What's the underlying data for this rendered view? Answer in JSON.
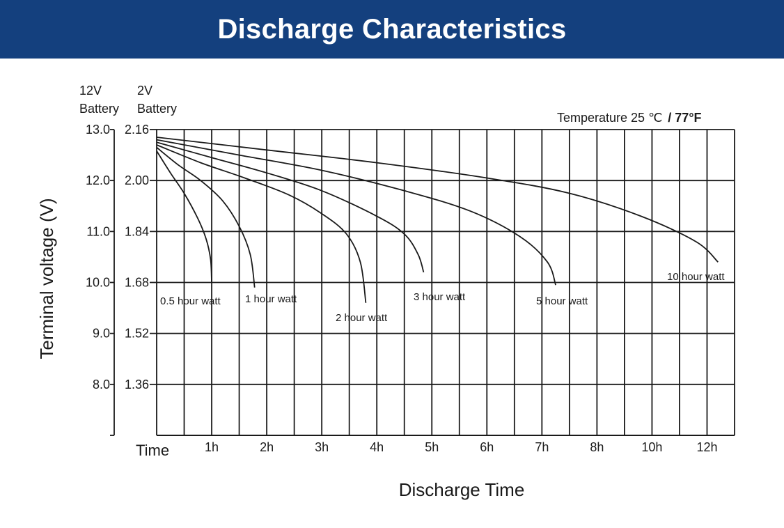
{
  "colors": {
    "banner": "#14407e",
    "banner_text": "#ffffff",
    "ink": "#1a1a1a"
  },
  "banner": {
    "title": "Discharge Characteristics"
  },
  "chart_data": {
    "type": "line",
    "title": "Discharge Characteristics",
    "temperature_note": "Temperature 25 ℃",
    "temperature_note_bold": "/ 77°F",
    "xlabel": "Discharge Time",
    "ylabel": "Terminal voltage (V)",
    "y_header_12v": [
      "12V",
      "Battery"
    ],
    "y_header_2v": [
      "2V",
      "Battery"
    ],
    "x_origin_label": "Time",
    "x_ticks": [
      "1h",
      "2h",
      "3h",
      "4h",
      "5h",
      "6h",
      "7h",
      "8h",
      "10h",
      "12h"
    ],
    "y_ticks_12v": [
      "13.0",
      "12.0",
      "11.0",
      "10.0",
      "9.0",
      "8.0"
    ],
    "y_ticks_2v": [
      "2.16",
      "2.00",
      "1.84",
      "1.68",
      "1.52",
      "1.36"
    ],
    "y_tick_values": [
      13.0,
      12.0,
      11.0,
      10.0,
      9.0,
      8.0
    ],
    "ylim": [
      7.0,
      13.0
    ],
    "grid": true,
    "series": [
      {
        "name": "0.5 hour watt",
        "x": [
          0,
          0.25,
          0.5,
          0.75,
          0.9,
          0.98,
          1.0
        ],
        "y": [
          12.58,
          12.15,
          11.75,
          11.25,
          10.85,
          10.45,
          10.0
        ]
      },
      {
        "name": "1 hour watt",
        "x": [
          0,
          0.4,
          0.8,
          1.2,
          1.5,
          1.7,
          1.78
        ],
        "y": [
          12.65,
          12.3,
          12.0,
          11.6,
          11.1,
          10.55,
          9.9
        ]
      },
      {
        "name": "2 hour watt",
        "x": [
          0,
          0.8,
          1.6,
          2.4,
          3.0,
          3.45,
          3.7,
          3.8
        ],
        "y": [
          12.7,
          12.35,
          12.05,
          11.72,
          11.35,
          10.95,
          10.4,
          9.6
        ]
      },
      {
        "name": "3 hour watt",
        "x": [
          0,
          1.0,
          2.0,
          3.0,
          4.0,
          4.5,
          4.75,
          4.85
        ],
        "y": [
          12.75,
          12.45,
          12.15,
          11.8,
          11.3,
          10.95,
          10.55,
          10.2
        ]
      },
      {
        "name": "5 hour watt",
        "x": [
          0,
          1.5,
          3.0,
          4.5,
          5.7,
          6.6,
          7.1,
          7.25
        ],
        "y": [
          12.8,
          12.5,
          12.2,
          11.8,
          11.4,
          10.9,
          10.4,
          9.95
        ]
      },
      {
        "name": "10 hour watt",
        "x": [
          0,
          2.0,
          4.0,
          6.0,
          7.5,
          8.8,
          9.8,
          10.2
        ],
        "y": [
          12.85,
          12.6,
          12.35,
          12.05,
          11.75,
          11.3,
          10.8,
          10.4
        ]
      }
    ]
  }
}
